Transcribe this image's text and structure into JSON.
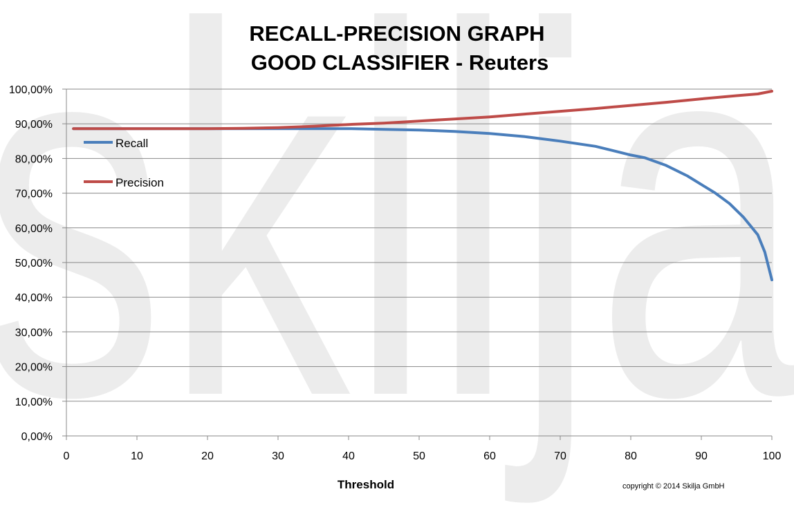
{
  "chart_data": {
    "type": "line",
    "title_line1": "RECALL-PRECISION GRAPH",
    "title_line2": "GOOD CLASSIFIER - Reuters",
    "xlabel": "Threshold",
    "ylabel": "",
    "xlim": [
      0,
      100
    ],
    "ylim": [
      0,
      100
    ],
    "x_ticks": [
      "0",
      "10",
      "20",
      "30",
      "40",
      "50",
      "60",
      "70",
      "80",
      "90",
      "100"
    ],
    "y_ticks": [
      "0,00%",
      "10,00%",
      "20,00%",
      "30,00%",
      "40,00%",
      "50,00%",
      "60,00%",
      "70,00%",
      "80,00%",
      "90,00%",
      "100,00%"
    ],
    "grid": "horizontal",
    "legend_position": "top-left",
    "series": [
      {
        "name": "Recall",
        "color": "#4a7ebb",
        "points": [
          [
            1,
            88.6
          ],
          [
            10,
            88.6
          ],
          [
            20,
            88.6
          ],
          [
            30,
            88.6
          ],
          [
            40,
            88.6
          ],
          [
            45,
            88.4
          ],
          [
            50,
            88.2
          ],
          [
            55,
            87.8
          ],
          [
            60,
            87.2
          ],
          [
            65,
            86.3
          ],
          [
            70,
            85.0
          ],
          [
            75,
            83.5
          ],
          [
            80,
            81.0
          ],
          [
            82,
            80.2
          ],
          [
            85,
            78.0
          ],
          [
            88,
            75.0
          ],
          [
            90,
            72.5
          ],
          [
            92,
            70.0
          ],
          [
            94,
            67.0
          ],
          [
            95,
            65.0
          ],
          [
            96,
            63.0
          ],
          [
            97,
            60.5
          ],
          [
            98,
            58.0
          ],
          [
            99,
            53.0
          ],
          [
            99.5,
            49.0
          ],
          [
            100,
            45.0
          ]
        ]
      },
      {
        "name": "Precision",
        "color": "#be4b48",
        "points": [
          [
            1,
            88.6
          ],
          [
            20,
            88.6
          ],
          [
            25,
            88.7
          ],
          [
            30,
            88.9
          ],
          [
            35,
            89.3
          ],
          [
            40,
            89.8
          ],
          [
            45,
            90.2
          ],
          [
            50,
            90.8
          ],
          [
            55,
            91.4
          ],
          [
            60,
            92.0
          ],
          [
            65,
            92.8
          ],
          [
            70,
            93.6
          ],
          [
            75,
            94.4
          ],
          [
            80,
            95.3
          ],
          [
            85,
            96.2
          ],
          [
            90,
            97.2
          ],
          [
            95,
            98.1
          ],
          [
            98,
            98.6
          ],
          [
            100,
            99.4
          ]
        ]
      }
    ]
  },
  "watermark": {
    "text": "skilja",
    "color": "#ececec"
  },
  "footer": {
    "copyright": "copyright ©  2014 Skilja GmbH"
  }
}
